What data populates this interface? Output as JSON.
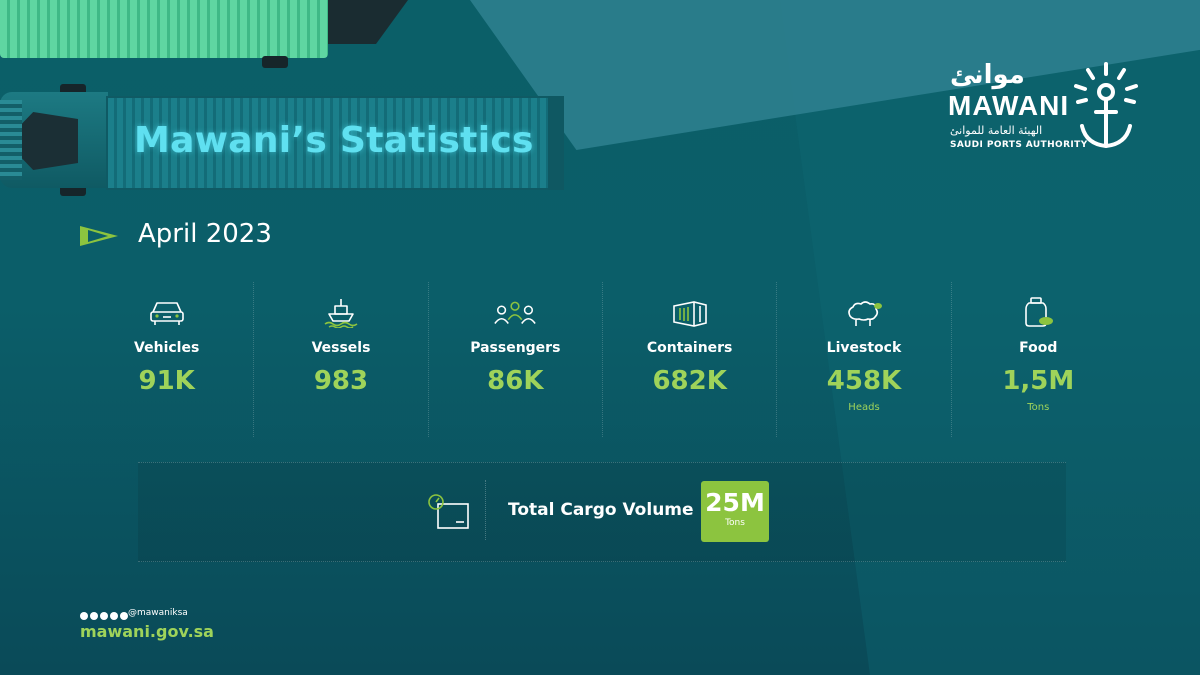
{
  "header": {
    "title": "Mawani’s Statistics"
  },
  "logo": {
    "arabic_name": "موانئ",
    "english_name": "MAWANI",
    "arabic_subtitle": "الهيئة العامة للموانئ",
    "english_subtitle": "SAUDI PORTS AUTHORITY"
  },
  "period": {
    "label": "April 2023"
  },
  "stats": [
    {
      "icon": "car-icon",
      "label": "Vehicles",
      "value": "91K",
      "unit": ""
    },
    {
      "icon": "ship-icon",
      "label": "Vessels",
      "value": "983",
      "unit": ""
    },
    {
      "icon": "people-icon",
      "label": "Passengers",
      "value": "86K",
      "unit": ""
    },
    {
      "icon": "container-icon",
      "label": "Containers",
      "value": "682K",
      "unit": ""
    },
    {
      "icon": "sheep-icon",
      "label": "Livestock",
      "value": "458K",
      "unit": "Heads"
    },
    {
      "icon": "food-jar-icon",
      "label": "Food",
      "value": "1,5M",
      "unit": "Tons"
    }
  ],
  "cargo": {
    "icon": "cargo-box-icon",
    "label": "Total Cargo Volume",
    "value": "25M",
    "unit": "Tons"
  },
  "footer": {
    "handle": "@mawaniksa",
    "website": "mawani.gov.sa"
  },
  "colors": {
    "accent": "#9fd35a",
    "badge": "#8cc43f",
    "title": "#5fe0f0",
    "background": "#0b5e69"
  }
}
